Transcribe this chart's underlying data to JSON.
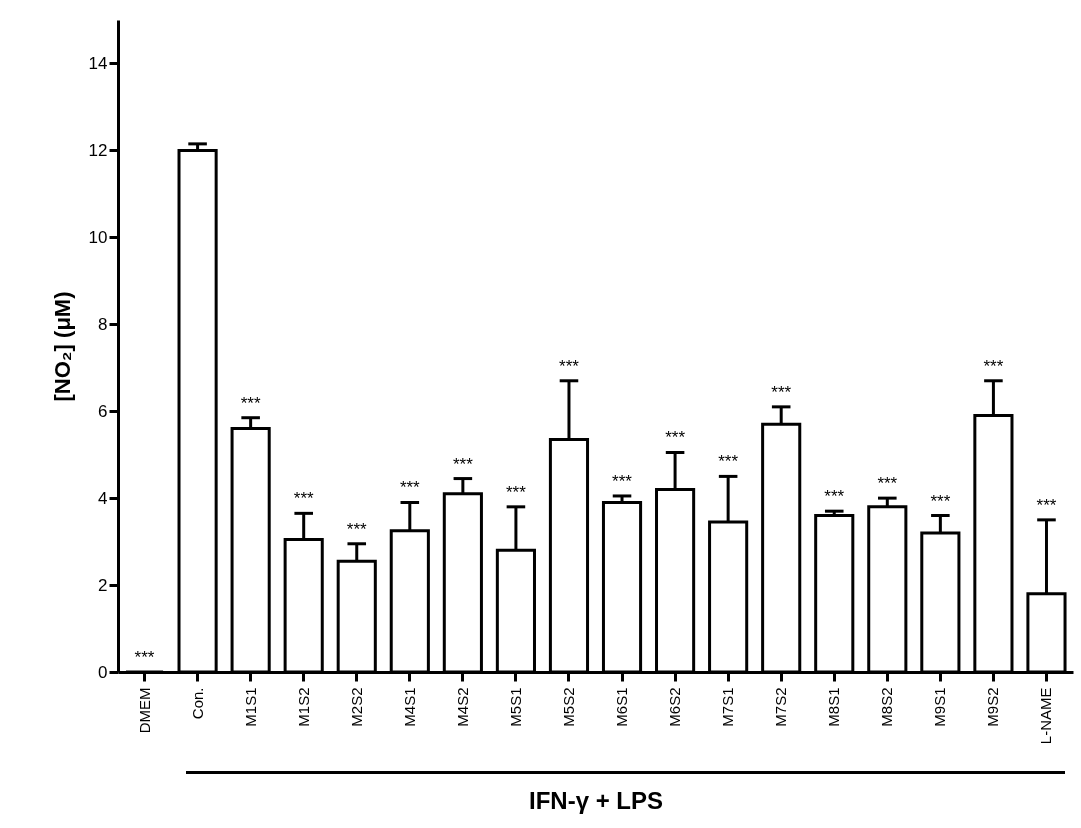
{
  "chart_data": {
    "type": "bar",
    "ylabel": "[NO₂] (μM)",
    "xlabel": "IFN-γ + LPS",
    "categories": [
      "DMEM",
      "Con.",
      "M1S1",
      "M1S2",
      "M2S2",
      "M4S1",
      "M4S2",
      "M5S1",
      "M5S2",
      "M6S1",
      "M6S2",
      "M7S1",
      "M7S2",
      "M8S1",
      "M8S2",
      "M9S1",
      "M9S2",
      "L-NAME"
    ],
    "values": [
      0,
      12.0,
      5.6,
      3.05,
      2.55,
      3.25,
      4.1,
      2.8,
      5.35,
      3.9,
      4.2,
      3.45,
      5.7,
      3.6,
      3.8,
      3.2,
      5.9,
      1.8
    ],
    "errors": [
      null,
      [
        12.0,
        12.15
      ],
      [
        5.6,
        5.85
      ],
      [
        3.05,
        3.65
      ],
      [
        2.55,
        2.95
      ],
      [
        3.25,
        3.9
      ],
      [
        4.1,
        4.45
      ],
      [
        2.8,
        3.8
      ],
      [
        5.35,
        6.7
      ],
      [
        3.9,
        4.05
      ],
      [
        4.2,
        5.05
      ],
      [
        3.45,
        4.5
      ],
      [
        5.7,
        6.1
      ],
      [
        3.6,
        3.7
      ],
      [
        3.8,
        4.0
      ],
      [
        3.2,
        3.6
      ],
      [
        5.9,
        6.7
      ],
      [
        1.8,
        3.5
      ]
    ],
    "color": "#ffffff",
    "ylim": [
      0,
      15
    ],
    "yticks": [
      0,
      2,
      4,
      6,
      8,
      10,
      12,
      14
    ],
    "grid": false,
    "annotations": [
      {
        "text": "***",
        "x": "DMEM",
        "y": 0
      },
      {
        "text": "***",
        "x": "M1S1",
        "y": 5.85
      },
      {
        "text": "***",
        "x": "M1S2",
        "y": 3.65
      },
      {
        "text": "***",
        "x": "M2S2",
        "y": 2.95
      },
      {
        "text": "***",
        "x": "M4S1",
        "y": 3.9
      },
      {
        "text": "***",
        "x": "M4S2",
        "y": 4.45
      },
      {
        "text": "***",
        "x": "M5S1",
        "y": 3.8
      },
      {
        "text": "***",
        "x": "M5S2",
        "y": 6.7
      },
      {
        "text": "***",
        "x": "M6S1",
        "y": 4.05
      },
      {
        "text": "***",
        "x": "M6S2",
        "y": 5.05
      },
      {
        "text": "***",
        "x": "M7S1",
        "y": 4.5
      },
      {
        "text": "***",
        "x": "M7S2",
        "y": 6.1
      },
      {
        "text": "***",
        "x": "M8S1",
        "y": 3.7
      },
      {
        "text": "***",
        "x": "M8S2",
        "y": 4.0
      },
      {
        "text": "***",
        "x": "M9S1",
        "y": 3.6
      },
      {
        "text": "***",
        "x": "M9S2",
        "y": 6.7
      },
      {
        "text": "***",
        "x": "L-NAME",
        "y": 3.5
      }
    ]
  }
}
